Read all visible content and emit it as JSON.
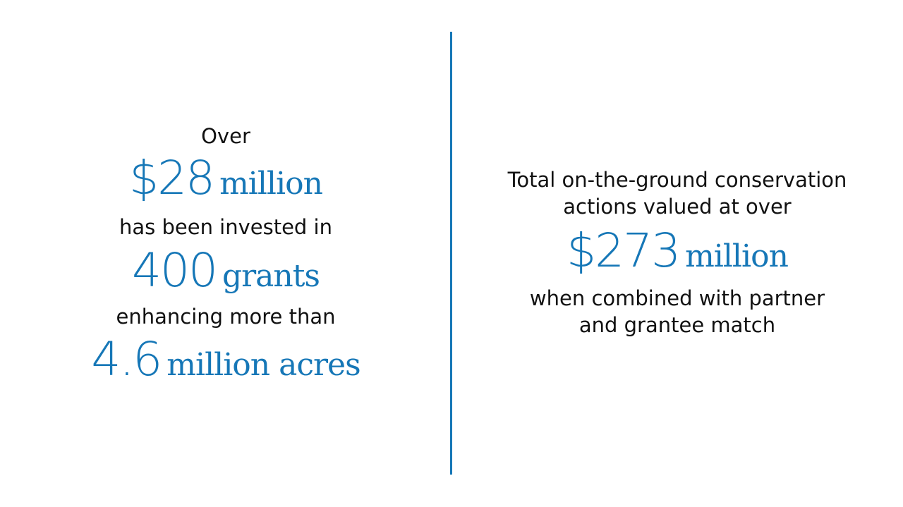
{
  "accent_color": "#1677b7",
  "left": {
    "line1": "Over",
    "stat1": {
      "number": "$28",
      "unit": "million"
    },
    "line2": "has been invested in",
    "stat2": {
      "number": "400",
      "unit": "grants"
    },
    "line3": "enhancing more than",
    "stat3": {
      "number": "4.6",
      "unit": "million acres"
    }
  },
  "right": {
    "line1": "Total on-the-ground conservation",
    "line2": "actions valued at over",
    "stat": {
      "number": "$273",
      "unit": "million"
    },
    "line3": "when combined with partner",
    "line4": "and grantee match"
  }
}
